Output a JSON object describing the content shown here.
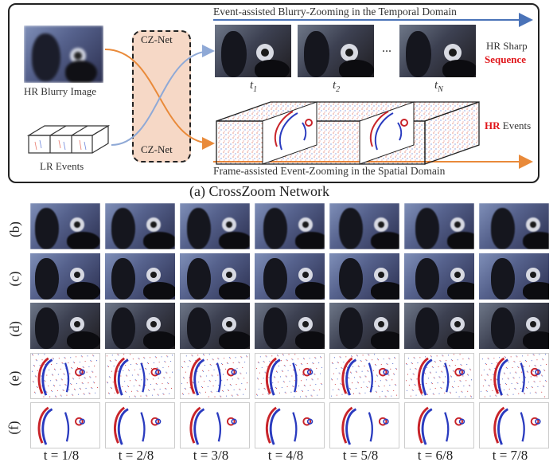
{
  "figure": {
    "top_panel": {
      "input_blurry_label": "HR Blurry Image",
      "input_events_label": "LR Events",
      "cznet_top": "CZ-Net",
      "cznet_bottom": "CZ-Net",
      "temporal_title": "Event-assisted Blurry-Zooming in the Temporal Domain",
      "spatial_title": "Frame-assisted Event-Zooming in the Spatial Domain",
      "sequence_label_line1": "HR Sharp",
      "sequence_label_line2": "Sequence",
      "events_label_hr": "HR",
      "events_label_rest": " Events",
      "frame_t1": "t",
      "frame_t1_sub": "1",
      "frame_t2": "t",
      "frame_t2_sub": "2",
      "frame_tn": "t",
      "frame_tn_sub": "N",
      "ellipsis": "..."
    },
    "caption_a": "(a) CrossZoom Network",
    "row_labels": [
      "(b)",
      "(c)",
      "(d)",
      "(e)",
      "(f)"
    ],
    "time_labels": [
      "t = 1/8",
      "t = 2/8",
      "t = 3/8",
      "t = 4/8",
      "t = 5/8",
      "t = 6/8",
      "t = 7/8"
    ],
    "colors": {
      "arrow_blue": "#8fa9d6",
      "arrow_orange": "#e98a3a",
      "title_blue_line": "#4a73b8",
      "emphasis_red": "#e0161b",
      "cz_fill": "#f6d8c6"
    }
  }
}
